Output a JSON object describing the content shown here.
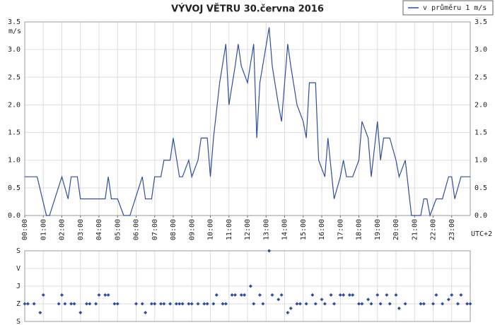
{
  "chart_data": [
    {
      "type": "line",
      "title": "VÝVOJ VĚTRU  30.června 2016",
      "y_label": "m/s",
      "x_label": "UTC+2",
      "legend": "upper right",
      "grid": true,
      "x": [
        0,
        40,
        70,
        80,
        120,
        140,
        150,
        170,
        180,
        260,
        270,
        280,
        300,
        320,
        340,
        380,
        390,
        410,
        420,
        440,
        450,
        470,
        480,
        500,
        510,
        530,
        540,
        560,
        570,
        590,
        600,
        610,
        630,
        650,
        660,
        680,
        690,
        700,
        720,
        740,
        750,
        760,
        790,
        800,
        820,
        830,
        850,
        860,
        880,
        900,
        910,
        920,
        940,
        950,
        970,
        980,
        1000,
        1020,
        1030,
        1040,
        1060,
        1080,
        1090,
        1110,
        1120,
        1140,
        1150,
        1160,
        1180,
        1200,
        1210,
        1230,
        1250,
        1280,
        1290,
        1300,
        1310,
        1330,
        1350,
        1370,
        1380,
        1390,
        1410,
        1440
      ],
      "series": [
        {
          "name": "v průměru 1 m/s",
          "color": "#2d4f9e",
          "values": [
            0.7,
            0.7,
            0,
            0,
            0.7,
            0.3,
            0.7,
            0.7,
            0.3,
            0.3,
            0.7,
            0.3,
            0.3,
            0,
            0,
            0.7,
            0.3,
            0.3,
            0.7,
            0.7,
            1,
            1,
            1.4,
            0.7,
            0.7,
            1,
            0.7,
            1,
            1.4,
            1.4,
            0.7,
            1.4,
            2.4,
            3.1,
            2,
            2.7,
            3.1,
            2.7,
            2.4,
            3.1,
            1.4,
            2.4,
            3.4,
            2.7,
            2,
            1.7,
            3.1,
            2.7,
            2,
            1.7,
            1.4,
            2.4,
            2.4,
            1,
            0.7,
            1.4,
            0.3,
            0.7,
            1,
            0.7,
            0.7,
            1,
            1.7,
            1.4,
            0.7,
            1.7,
            1,
            1.4,
            1.4,
            1,
            0.7,
            1,
            0,
            0,
            0.3,
            0.3,
            0,
            0.3,
            0.3,
            0.7,
            0.7,
            0.3,
            0.7,
            0.7
          ]
        }
      ],
      "xlim": [
        0,
        1440
      ],
      "xticks": [
        {
          "value": 0,
          "label": "00:00"
        },
        {
          "value": 60,
          "label": "01:00"
        },
        {
          "value": 120,
          "label": "02:00"
        },
        {
          "value": 180,
          "label": "03:00"
        },
        {
          "value": 240,
          "label": "04:00"
        },
        {
          "value": 300,
          "label": "05:00"
        },
        {
          "value": 360,
          "label": "06:00"
        },
        {
          "value": 420,
          "label": "07:00"
        },
        {
          "value": 480,
          "label": "08:00"
        },
        {
          "value": 540,
          "label": "09:00"
        },
        {
          "value": 600,
          "label": "10:00"
        },
        {
          "value": 660,
          "label": "11:00"
        },
        {
          "value": 720,
          "label": "12:00"
        },
        {
          "value": 780,
          "label": "13:00"
        },
        {
          "value": 840,
          "label": "14:00"
        },
        {
          "value": 900,
          "label": "15:00"
        },
        {
          "value": 960,
          "label": "16:00"
        },
        {
          "value": 1020,
          "label": "17:00"
        },
        {
          "value": 1080,
          "label": "18:00"
        },
        {
          "value": 1140,
          "label": "19:00"
        },
        {
          "value": 1200,
          "label": "20:00"
        },
        {
          "value": 1260,
          "label": "21:00"
        },
        {
          "value": 1320,
          "label": "22:00"
        },
        {
          "value": 1380,
          "label": "23:00"
        }
      ],
      "ylim": [
        0,
        3.5
      ],
      "yticks": [
        {
          "value": 0,
          "label": "0.0"
        },
        0.5,
        {
          "value": 1,
          "label": "1.0"
        },
        1.5,
        {
          "value": 2,
          "label": "2.0"
        },
        2.5,
        {
          "value": 3,
          "label": "3.0"
        },
        3.5
      ]
    },
    {
      "type": "scatter",
      "color": "#2d4f9e",
      "x": [
        0,
        10,
        30,
        50,
        60,
        110,
        120,
        130,
        150,
        160,
        180,
        200,
        210,
        230,
        240,
        260,
        270,
        290,
        300,
        360,
        380,
        390,
        410,
        420,
        440,
        450,
        470,
        490,
        500,
        510,
        530,
        540,
        560,
        580,
        590,
        610,
        620,
        640,
        650,
        670,
        680,
        700,
        710,
        730,
        740,
        760,
        770,
        790,
        800,
        820,
        830,
        850,
        860,
        880,
        890,
        910,
        930,
        940,
        960,
        970,
        990,
        1000,
        1020,
        1030,
        1050,
        1060,
        1080,
        1090,
        1110,
        1120,
        1140,
        1150,
        1170,
        1180,
        1200,
        1210,
        1230,
        1280,
        1290,
        1320,
        1330,
        1350,
        1370,
        1380,
        1400,
        1410,
        1430,
        1440
      ],
      "values": [
        270,
        270,
        270,
        315,
        225,
        270,
        225,
        270,
        270,
        270,
        315,
        270,
        270,
        270,
        225,
        225,
        225,
        270,
        270,
        270,
        270,
        315,
        270,
        270,
        270,
        270,
        270,
        270,
        270,
        270,
        270,
        270,
        270,
        270,
        270,
        270,
        225,
        270,
        270,
        225,
        225,
        225,
        225,
        180,
        270,
        225,
        270,
        0,
        225,
        248,
        225,
        315,
        293,
        270,
        270,
        270,
        225,
        270,
        248,
        270,
        225,
        270,
        225,
        225,
        225,
        225,
        270,
        270,
        248,
        270,
        225,
        270,
        225,
        270,
        225,
        293,
        270,
        270,
        270,
        270,
        225,
        270,
        248,
        225,
        270,
        225,
        270,
        270
      ],
      "xlim": [
        0,
        1440
      ],
      "ylim": [
        360,
        0
      ],
      "yticks": [
        {
          "value": 0,
          "label": "S"
        },
        {
          "value": 90,
          "label": "V"
        },
        {
          "value": 180,
          "label": "J"
        },
        {
          "value": 270,
          "label": "Z"
        },
        {
          "value": 360,
          "label": "S"
        }
      ]
    }
  ]
}
